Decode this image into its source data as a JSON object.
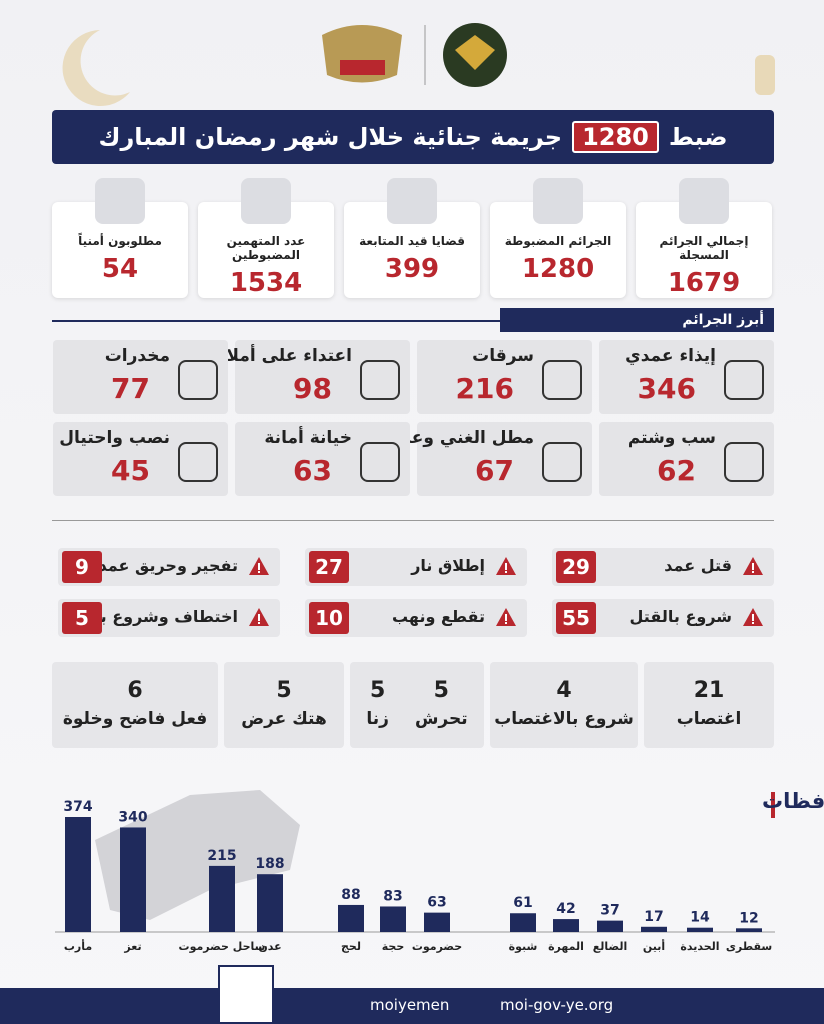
{
  "header": {
    "title_before": "ضبط",
    "title_number": "1280",
    "title_after": "جريمة جنائية خلال شهر رمضان المبارك"
  },
  "stats": [
    {
      "label": "إجمالي الجرائم المسجلة",
      "value": "1679"
    },
    {
      "label": "الجرائم المضبوطة",
      "value": "1280"
    },
    {
      "label": "قضايا قيد المتابعة",
      "value": "399"
    },
    {
      "label": "عدد المتهمين المضبوطين",
      "value": "1534"
    },
    {
      "label": "مطلوبون أمنياً",
      "value": "54"
    }
  ],
  "crimes_heading": "أبرز الجرائم",
  "crimes": [
    {
      "label": "إيذاء عمدي",
      "value": "346"
    },
    {
      "label": "سرقات",
      "value": "216"
    },
    {
      "label": "اعتداء على أملاك الغير",
      "value": "98"
    },
    {
      "label": "مخدرات",
      "value": "77"
    },
    {
      "label": "سب وشتم",
      "value": "62"
    },
    {
      "label": "مطل الغني وعدم سداد دَين",
      "value": "67"
    },
    {
      "label": "خيانة أمانة",
      "value": "63"
    },
    {
      "label": "نصب واحتيال",
      "value": "45"
    }
  ],
  "alerts": [
    {
      "label": "قتل عمد",
      "value": "29"
    },
    {
      "label": "إطلاق نار",
      "value": "27"
    },
    {
      "label": "تفجير وحريق عمدي",
      "value": "9"
    },
    {
      "label": "شروع بالقتل",
      "value": "55"
    },
    {
      "label": "تقطع ونهب",
      "value": "10"
    },
    {
      "label": "اختطاف وشروع به",
      "value": "5"
    }
  ],
  "sexual_crimes": [
    {
      "items": [
        {
          "value": "21",
          "label": "اغتصاب"
        }
      ]
    },
    {
      "items": [
        {
          "value": "4",
          "label": "شروع بالاغتصاب"
        }
      ]
    },
    {
      "items": [
        {
          "value": "5",
          "label": "تحرش"
        },
        {
          "value": "5",
          "label": "زنا"
        }
      ]
    },
    {
      "items": [
        {
          "value": "5",
          "label": "هتك عرض"
        }
      ]
    },
    {
      "items": [
        {
          "value": "6",
          "label": "فعل فاضح وخلوة"
        }
      ]
    }
  ],
  "chart_data": {
    "type": "bar",
    "title": "توزيع المتهمين حسب المحافظات",
    "categories": [
      "مأرب",
      "تعز",
      "ساحل حضرموت",
      "عدن",
      "لحج",
      "حجة",
      "حضرموت",
      "شبوة",
      "المهرة",
      "الضالع",
      "أبين",
      "الحديدة",
      "سقطرى"
    ],
    "values": [
      374,
      340,
      215,
      188,
      88,
      83,
      63,
      61,
      42,
      37,
      17,
      14,
      12
    ],
    "color": "#1f2a5c"
  },
  "footer": {
    "social": "moiyemen",
    "website": "moi-gov-ye.org"
  }
}
